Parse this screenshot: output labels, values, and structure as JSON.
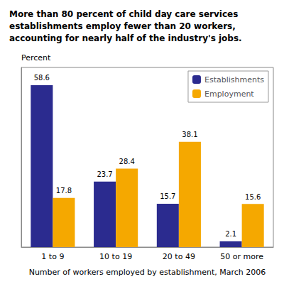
{
  "chart_data": {
    "type": "bar",
    "title": "More than 80 percent of child day care services\nestablishments employ fewer than 20 workers,\naccounting for nearly half of the industry's jobs.",
    "ylabel": "Percent",
    "xlabel": "Number of workers employed by establishment, March 2006",
    "categories": [
      "1 to 9",
      "10 to 19",
      "20 to 49",
      "50 or more"
    ],
    "series": [
      {
        "name": "Establishments",
        "color": "#2B2B8F",
        "values": [
          58.6,
          23.7,
          15.7,
          2.1
        ]
      },
      {
        "name": "Employment",
        "color": "#F5A800",
        "values": [
          17.8,
          28.4,
          38.1,
          15.6
        ]
      }
    ],
    "ylim": [
      0,
      65
    ],
    "grid": false,
    "legend": "upper right",
    "data_labels": true,
    "tick_labels": "x"
  }
}
